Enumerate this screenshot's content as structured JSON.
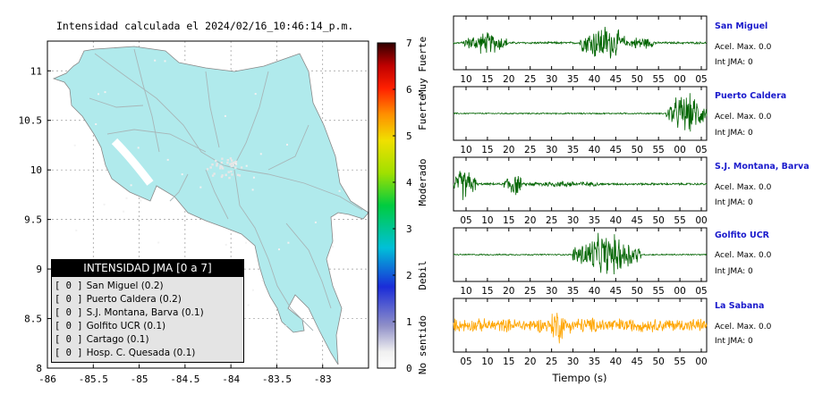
{
  "title": "Intensidad calculada el 2024/02/16_10:46:14_p.m.",
  "map": {
    "xticks": [
      "-86",
      "-85.5",
      "-85",
      "-84.5",
      "-84",
      "-83.5",
      "-83"
    ],
    "yticks": [
      "11",
      "10.5",
      "10",
      "9.5",
      "9",
      "8.5",
      "8"
    ],
    "land_color": "#b0eaec"
  },
  "legend": {
    "title": "INTENSIDAD JMA [0 a 7]",
    "items": [
      {
        "level": "[ 0 ]",
        "label": "San Miguel (0.2)"
      },
      {
        "level": "[ 0 ]",
        "label": "Puerto Caldera (0.2)"
      },
      {
        "level": "[ 0 ]",
        "label": "S.J. Montana, Barva (0.1)"
      },
      {
        "level": "[ 0 ]",
        "label": "Golfito UCR (0.1)"
      },
      {
        "level": "[ 0 ]",
        "label": "Cartago (0.1)"
      },
      {
        "level": "[ 0 ]",
        "label": "Hosp. C. Quesada (0.1)"
      }
    ]
  },
  "colorbar": {
    "ticks": [
      "0",
      "1",
      "2",
      "3",
      "4",
      "5",
      "6",
      "7"
    ],
    "labels": [
      "No sentido",
      "Debil",
      "Moderado",
      "Fuerte",
      "Muy Fuerte"
    ]
  },
  "xlabel": "Tiempo (s)",
  "chart_data": [
    {
      "type": "scatter",
      "title": "Intensidad calculada el 2024/02/16_10:46:14_p.m.",
      "xlim": [
        -86,
        -82.5
      ],
      "ylim": [
        8,
        11.3
      ],
      "points": [
        {
          "name": "San Miguel",
          "intensity": 0.2
        },
        {
          "name": "Puerto Caldera",
          "intensity": 0.2
        },
        {
          "name": "S.J. Montana, Barva",
          "intensity": 0.1
        },
        {
          "name": "Golfito UCR",
          "intensity": 0.1
        },
        {
          "name": "Cartago",
          "intensity": 0.1
        },
        {
          "name": "Hosp. C. Quesada",
          "intensity": 0.1
        }
      ]
    },
    {
      "type": "line",
      "xlabel": "Tiempo (s)",
      "series": [
        {
          "name": "San Miguel",
          "accel_label": "Acel. Max. 0.0",
          "jma_label": "Int JMA: 0",
          "color": "#006400",
          "xticks": [
            "10",
            "15",
            "20",
            "25",
            "30",
            "35",
            "40",
            "45",
            "50",
            "55",
            "00",
            "05"
          ],
          "burst": [
            [
              0.04,
              0.22,
              0.5
            ],
            [
              0.5,
              0.68,
              0.85
            ],
            [
              0.68,
              0.8,
              0.3
            ]
          ],
          "noise": 0.05
        },
        {
          "name": "Puerto Caldera",
          "accel_label": "Acel. Max. 0.0",
          "jma_label": "Int JMA: 0",
          "color": "#006400",
          "xticks": [
            "10",
            "15",
            "20",
            "25",
            "30",
            "35",
            "40",
            "45",
            "50",
            "55",
            "00",
            "05"
          ],
          "burst": [
            [
              0.84,
              1.0,
              0.9
            ]
          ],
          "noise": 0.03
        },
        {
          "name": "S.J. Montana, Barva",
          "accel_label": "Acel. Max. 0.0",
          "jma_label": "Int JMA: 0",
          "color": "#006400",
          "xticks": [
            "05",
            "10",
            "15",
            "20",
            "25",
            "30",
            "35",
            "40",
            "45",
            "50",
            "55",
            "00"
          ],
          "burst": [
            [
              0.0,
              0.09,
              0.75
            ],
            [
              0.2,
              0.27,
              0.6
            ],
            [
              0.27,
              0.6,
              0.15
            ]
          ],
          "noise": 0.05
        },
        {
          "name": "Golfito UCR",
          "accel_label": "Acel. Max. 0.0",
          "jma_label": "Int JMA: 0",
          "color": "#006400",
          "xticks": [
            "10",
            "15",
            "20",
            "25",
            "30",
            "35",
            "40",
            "45",
            "50",
            "55",
            "00",
            "05"
          ],
          "burst": [
            [
              0.47,
              0.74,
              0.95
            ]
          ],
          "noise": 0.03
        },
        {
          "name": "La Sabana",
          "accel_label": "Acel. Max. 0.0",
          "jma_label": "Int JMA: 0",
          "color": "#ffa500",
          "xticks": [
            "05",
            "10",
            "15",
            "20",
            "25",
            "30",
            "35",
            "40",
            "45",
            "50",
            "55",
            "00"
          ],
          "burst": [
            [
              0.0,
              1.0,
              0.35
            ],
            [
              0.38,
              0.44,
              0.9
            ]
          ],
          "noise": 0.3
        }
      ]
    }
  ]
}
